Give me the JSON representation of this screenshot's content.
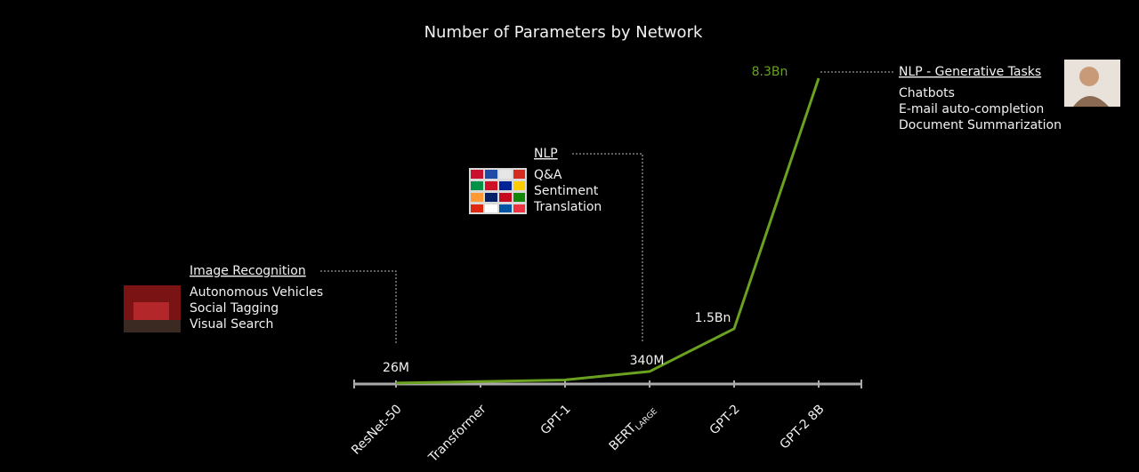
{
  "chart_data": {
    "type": "line",
    "title": "Number of Parameters by Network",
    "categories": [
      "ResNet-50",
      "Transformer",
      "GPT-1",
      "BERT",
      "GPT-2",
      "GPT-2 8B"
    ],
    "category_subscripts": [
      null,
      null,
      null,
      "LARGE",
      null,
      null
    ],
    "values": [
      26,
      65,
      110,
      340,
      1500,
      8300
    ],
    "value_labels": [
      "26M",
      null,
      null,
      "340M",
      "1.5Bn",
      "8.3Bn"
    ],
    "color": "#6aa121",
    "ylim": [
      0,
      8300
    ],
    "annotations": [
      {
        "title": "Image Recognition",
        "items": [
          "Autonomous Vehicles",
          "Social Tagging",
          "Visual Search"
        ]
      },
      {
        "title": "NLP",
        "items": [
          "Q&A",
          "Sentiment",
          "Translation"
        ]
      },
      {
        "title": "NLP - Generative Tasks",
        "items": [
          "Chatbots",
          "E-mail auto-completion",
          "Document Summarization"
        ]
      }
    ]
  }
}
